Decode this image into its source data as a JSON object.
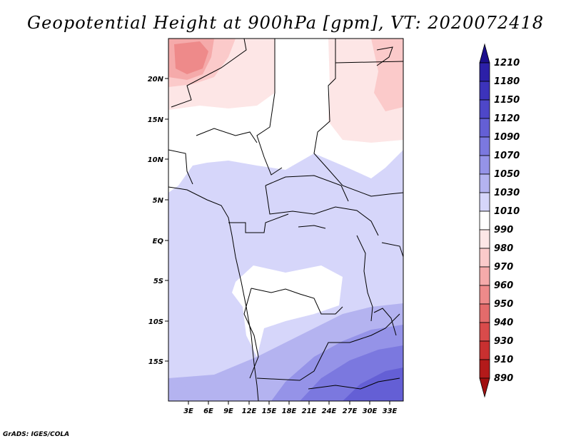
{
  "title": "Geopotential Height at 900hPa [gpm], VT: 2020072418",
  "footer": "GrADS: IGES/COLA",
  "map": {
    "lat_labels": [
      "20N",
      "15N",
      "10N",
      "5N",
      "EQ",
      "5S",
      "10S",
      "15S"
    ],
    "lon_labels": [
      "3E",
      "6E",
      "9E",
      "12E",
      "15E",
      "18E",
      "21E",
      "24E",
      "27E",
      "30E",
      "33E"
    ],
    "lat_range": [
      -20,
      25
    ],
    "lon_range": [
      0,
      35
    ]
  },
  "colorbar": {
    "levels": [
      {
        "value": "1210",
        "color": "#1c0f8c"
      },
      {
        "value": "1180",
        "color": "#2c20a8"
      },
      {
        "value": "1150",
        "color": "#3c33bb"
      },
      {
        "value": "1120",
        "color": "#4e47c8"
      },
      {
        "value": "1090",
        "color": "#645fd5"
      },
      {
        "value": "1070",
        "color": "#7b78df"
      },
      {
        "value": "1050",
        "color": "#9593e8"
      },
      {
        "value": "1030",
        "color": "#b4b3f0"
      },
      {
        "value": "1010",
        "color": "#d6d6fa"
      },
      {
        "value": "990",
        "color": "#ffffff"
      },
      {
        "value": "980",
        "color": "#fde6e6"
      },
      {
        "value": "970",
        "color": "#fbcaca"
      },
      {
        "value": "960",
        "color": "#f5aaaa"
      },
      {
        "value": "950",
        "color": "#ee8a8a"
      },
      {
        "value": "940",
        "color": "#e46b6b"
      },
      {
        "value": "930",
        "color": "#d94b4b"
      },
      {
        "value": "910",
        "color": "#c83030"
      },
      {
        "value": "890",
        "color": "#b31a1a"
      }
    ],
    "top_color": "#1c0f8c",
    "bottom_color": "#a01010"
  }
}
